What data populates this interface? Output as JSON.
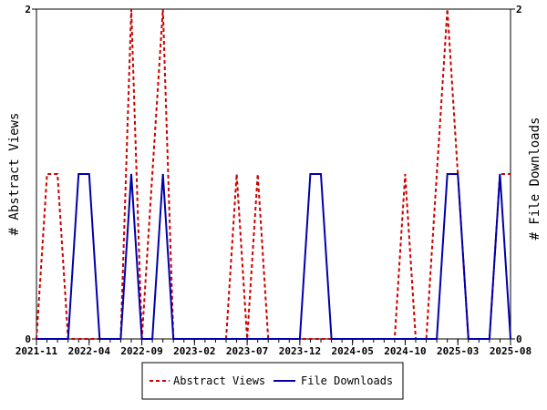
{
  "chart_data": {
    "type": "line",
    "title": "",
    "ylabel_left": "# Abstract Views",
    "ylabel_right": "# File Downloads",
    "xlabel": "",
    "ylim": [
      0,
      2
    ],
    "y_ticks": [
      "0",
      "2"
    ],
    "x_range": [
      "2021-11",
      "2025-08"
    ],
    "x_ticks": [
      "2021-11",
      "2022-04",
      "2022-09",
      "2023-02",
      "2023-07",
      "2023-12",
      "2024-05",
      "2024-10",
      "2025-03",
      "2025-08"
    ],
    "grid": false,
    "legend_position": "bottom-center",
    "series": [
      {
        "name": "Abstract Views",
        "color": "#cc0000",
        "dash": "dashed",
        "x": [
          "2021-11",
          "2021-12",
          "2022-01",
          "2022-02",
          "2022-03",
          "2022-04",
          "2022-05",
          "2022-06",
          "2022-07",
          "2022-08",
          "2022-09",
          "2022-10",
          "2022-11",
          "2022-12",
          "2023-01",
          "2023-02",
          "2023-03",
          "2023-04",
          "2023-05",
          "2023-06",
          "2023-07",
          "2023-08",
          "2023-09",
          "2023-10",
          "2023-11",
          "2023-12",
          "2024-01",
          "2024-02",
          "2024-03",
          "2024-04",
          "2024-05",
          "2024-06",
          "2024-07",
          "2024-08",
          "2024-09",
          "2024-10",
          "2024-11",
          "2024-12",
          "2025-01",
          "2025-02",
          "2025-03",
          "2025-04",
          "2025-05",
          "2025-06",
          "2025-07",
          "2025-08"
        ],
        "values": [
          0,
          1,
          1,
          0,
          0,
          0,
          0,
          0,
          0,
          2,
          0,
          1,
          2,
          0,
          0,
          0,
          0,
          0,
          0,
          1,
          0,
          1,
          0,
          0,
          0,
          0,
          0,
          0,
          0,
          0,
          0,
          0,
          0,
          0,
          0,
          1,
          0,
          0,
          1,
          2,
          1,
          0,
          0,
          0,
          1,
          1
        ]
      },
      {
        "name": "File Downloads",
        "color": "#0000aa",
        "dash": "solid",
        "x": [
          "2021-11",
          "2021-12",
          "2022-01",
          "2022-02",
          "2022-03",
          "2022-04",
          "2022-05",
          "2022-06",
          "2022-07",
          "2022-08",
          "2022-09",
          "2022-10",
          "2022-11",
          "2022-12",
          "2023-01",
          "2023-02",
          "2023-03",
          "2023-04",
          "2023-05",
          "2023-06",
          "2023-07",
          "2023-08",
          "2023-09",
          "2023-10",
          "2023-11",
          "2023-12",
          "2024-01",
          "2024-02",
          "2024-03",
          "2024-04",
          "2024-05",
          "2024-06",
          "2024-07",
          "2024-08",
          "2024-09",
          "2024-10",
          "2024-11",
          "2024-12",
          "2025-01",
          "2025-02",
          "2025-03",
          "2025-04",
          "2025-05",
          "2025-06",
          "2025-07",
          "2025-08"
        ],
        "values": [
          0,
          0,
          0,
          0,
          1,
          1,
          0,
          0,
          0,
          1,
          0,
          0,
          1,
          0,
          0,
          0,
          0,
          0,
          0,
          0,
          0,
          0,
          0,
          0,
          0,
          0,
          1,
          1,
          0,
          0,
          0,
          0,
          0,
          0,
          0,
          0,
          0,
          0,
          0,
          1,
          1,
          0,
          0,
          0,
          1,
          0
        ]
      }
    ]
  }
}
